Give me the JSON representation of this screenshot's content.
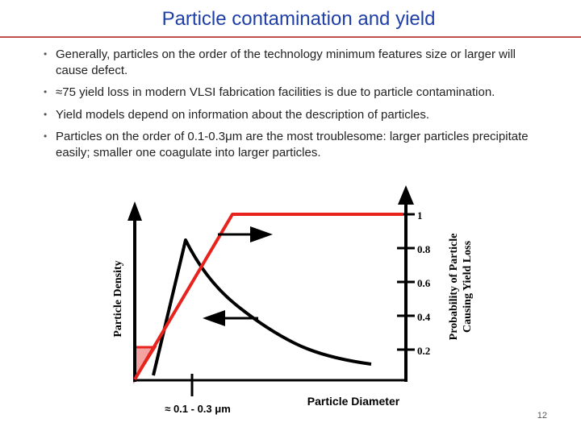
{
  "slide": {
    "title": "Particle contamination and yield",
    "page_number": "12"
  },
  "bullets": [
    "Generally, particles on the order of the technology minimum features size or larger will cause defect.",
    "≈75 yield loss in modern VLSI fabrication facilities is due to particle contamination.",
    "Yield models depend on information about the description of particles.",
    "Particles on the order of 0.1-0.3μm are the most troublesome: larger particles precipitate easily; smaller one coagulate into larger particles."
  ],
  "figure": {
    "left_axis_label": "Particle Density",
    "right_axis_label_line1": "Probability of Particle",
    "right_axis_label_line2": "Causing Yield Loss",
    "bottom_axis_label": "Particle Diameter",
    "x_range_label": "≈ 0.1 - 0.3 μm",
    "right_ticks": [
      "1",
      "0.8",
      "0.6",
      "0.4",
      "0.2"
    ],
    "colors": {
      "probability_curve": "#e8231e",
      "density_curve": "#000000",
      "shaded_region": "#f4a3a3"
    }
  }
}
